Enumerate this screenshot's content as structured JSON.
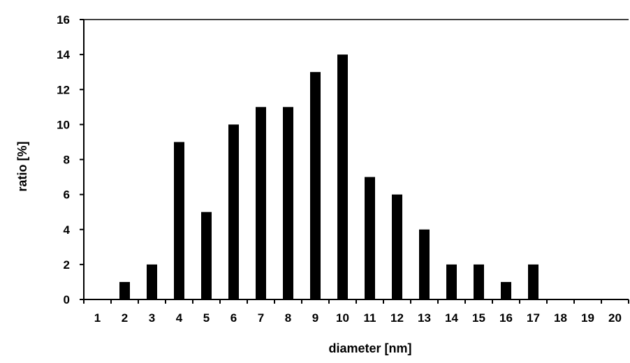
{
  "chart_data": {
    "type": "bar",
    "title": "",
    "xlabel": "diameter [nm]",
    "ylabel": "ratio [%]",
    "categories": [
      "1",
      "2",
      "3",
      "4",
      "5",
      "6",
      "7",
      "8",
      "9",
      "10",
      "11",
      "12",
      "13",
      "14",
      "15",
      "16",
      "17",
      "18",
      "19",
      "20"
    ],
    "values": [
      0,
      1,
      2,
      9,
      5,
      10,
      11,
      11,
      13,
      14,
      7,
      6,
      4,
      2,
      2,
      1,
      2,
      0,
      0,
      0
    ],
    "ylim": [
      0,
      16
    ],
    "yticks": [
      "0",
      "2",
      "4",
      "6",
      "8",
      "10",
      "12",
      "14",
      "16"
    ],
    "grid": false,
    "legend": "none",
    "bar_color": "#000000"
  }
}
